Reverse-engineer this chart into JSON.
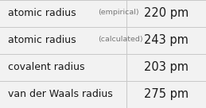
{
  "rows": [
    {
      "label": "atomic radius",
      "sublabel": "(empirical)",
      "value": "220 pm"
    },
    {
      "label": "atomic radius",
      "sublabel": "(calculated)",
      "value": "243 pm"
    },
    {
      "label": "covalent radius",
      "sublabel": "",
      "value": "203 pm"
    },
    {
      "label": "van der Waals radius",
      "sublabel": "",
      "value": "275 pm"
    }
  ],
  "bg_color": "#f2f2f2",
  "text_color": "#1a1a1a",
  "sublabel_color": "#777777",
  "divider_color": "#c8c8c8",
  "col_split": 0.615,
  "label_fontsize": 9.0,
  "sublabel_fontsize": 6.8,
  "value_fontsize": 10.5,
  "fig_width": 2.59,
  "fig_height": 1.36,
  "dpi": 100
}
